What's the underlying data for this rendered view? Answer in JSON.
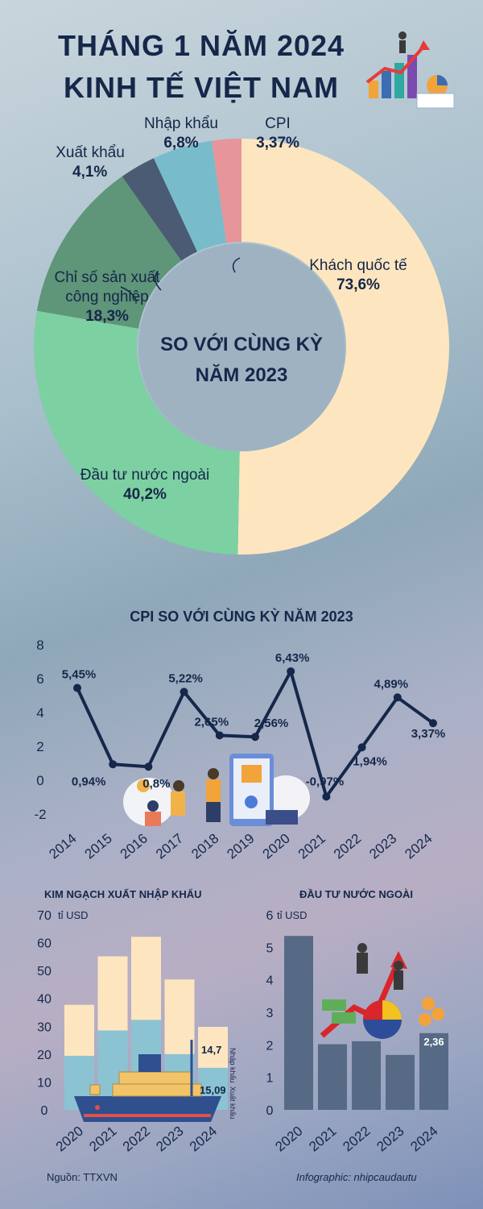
{
  "header": {
    "line1": "THÁNG 1 NĂM 2024",
    "line2": "KINH TẾ VIỆT NAM"
  },
  "donut": {
    "center_line1": "SO VỚI CÙNG KỲ",
    "center_line2": "NĂM 2023",
    "segments": [
      {
        "name": "Khách quốc tế",
        "value": 73.6,
        "label": "73,6%",
        "color": "#fde6bf"
      },
      {
        "name": "Đầu tư nước ngoài",
        "value": 40.2,
        "label": "40,2%",
        "color": "#7dd0a1"
      },
      {
        "name_line1": "Chỉ số sản xuất",
        "name_line2": "công nghiệp",
        "value": 18.3,
        "label": "18,3%",
        "color": "#5f9579"
      },
      {
        "name": "Xuất khẩu",
        "value": 4.1,
        "label": "4,1%",
        "color": "#4b5b73"
      },
      {
        "name": "Nhập khẩu",
        "value": 6.8,
        "label": "6,8%",
        "color": "#78bccb"
      },
      {
        "name": "CPI",
        "value": 3.37,
        "label": "3,37%",
        "color": "#e6959a"
      }
    ]
  },
  "chart_data": [
    {
      "type": "pie",
      "title": "SO VỚI CÙNG KỲ NĂM 2023",
      "categories": [
        "Khách quốc tế",
        "Đầu tư nước ngoài",
        "Chỉ số sản xuất công nghiệp",
        "Xuất khẩu",
        "Nhập khẩu",
        "CPI"
      ],
      "values": [
        73.6,
        40.2,
        18.3,
        4.1,
        6.8,
        3.37
      ]
    },
    {
      "type": "line",
      "title": "CPI SO VỚI CÙNG KỲ NĂM 2023",
      "x": [
        "2014",
        "2015",
        "2016",
        "2017",
        "2018",
        "2019",
        "2020",
        "2021",
        "2022",
        "2023",
        "2024"
      ],
      "values": [
        5.45,
        0.94,
        0.8,
        5.22,
        2.65,
        2.56,
        6.43,
        -0.97,
        1.94,
        4.89,
        3.37
      ],
      "data_labels": [
        "5,45%",
        "0,94%",
        "0,8%",
        "5,22%",
        "2,65%",
        "2,56%",
        "6,43%",
        "-0,97%",
        "1,94%",
        "4,89%",
        "3,37%"
      ],
      "yticks": [
        "8",
        "6",
        "4",
        "2",
        "0",
        "-2"
      ],
      "ylim": [
        -2,
        8
      ],
      "color": "#15274a"
    },
    {
      "type": "bar",
      "title": "KIM NGẠCH XUẤT NHẬP KHẨU",
      "ylabel": "tỉ USD",
      "categories": [
        "2020",
        "2021",
        "2022",
        "2023",
        "2024"
      ],
      "series": [
        {
          "name": "Xuất khẩu",
          "values": [
            19.4,
            28.5,
            32.3,
            20.0,
            15.09
          ],
          "color": "#8bc3d3"
        },
        {
          "name": "Nhập khẩu",
          "values": [
            18.3,
            26.6,
            29.8,
            26.8,
            14.7
          ],
          "color": "#fde6bf"
        }
      ],
      "data_labels": {
        "2024_import": "14,7",
        "2024_export": "15,09"
      },
      "yticks": [
        "70",
        "60",
        "50",
        "40",
        "30",
        "20",
        "10",
        "0"
      ],
      "ylim": [
        0,
        70
      ]
    },
    {
      "type": "bar",
      "title": "ĐẦU TƯ NƯỚC NGOÀI",
      "ylabel": "tỉ USD",
      "categories": [
        "2020",
        "2021",
        "2022",
        "2023",
        "2024"
      ],
      "values": [
        5.35,
        2.02,
        2.11,
        1.69,
        2.36
      ],
      "data_labels": {
        "2024": "2,36"
      },
      "yticks": [
        "6",
        "5",
        "4",
        "3",
        "2",
        "1",
        "0"
      ],
      "ylim": [
        0,
        6
      ],
      "color": "#566a86"
    }
  ],
  "footer": {
    "source": "Nguồn: TTXVN",
    "credit": "Infographic: nhipcaudautu"
  },
  "colors": {
    "navy": "#15274a",
    "line": "#15274a",
    "fdi_bar": "#566a86"
  }
}
